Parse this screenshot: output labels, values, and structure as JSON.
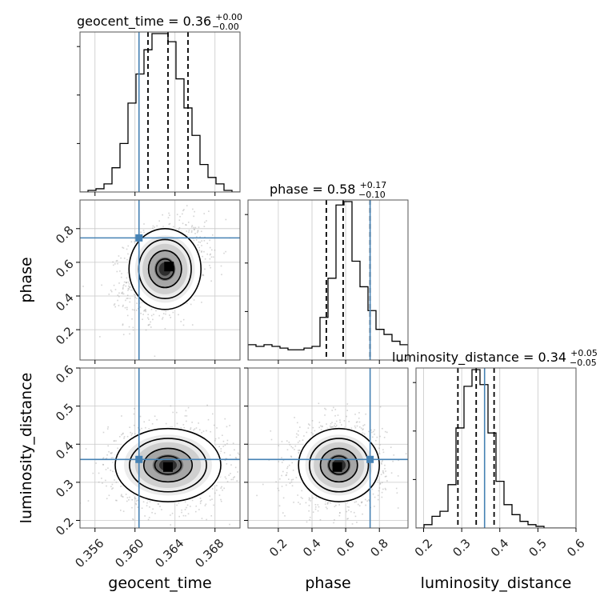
{
  "chart_data": {
    "type": "corner",
    "parameters": [
      "geocent_time",
      "phase",
      "luminosity_distance"
    ],
    "titles": [
      {
        "param": "geocent_time",
        "text": "geocent_time = 0.36",
        "upper": "+0.00",
        "lower": "−0.00"
      },
      {
        "param": "phase",
        "text": "phase = 0.58",
        "upper": "+0.17",
        "lower": "−0.10"
      },
      {
        "param": "luminosity_distance",
        "text": "luminosity_distance = 0.34",
        "upper": "+0.05",
        "lower": "−0.05"
      }
    ],
    "axis_labels": {
      "x": [
        "geocent_time",
        "phase",
        "luminosity_distance"
      ],
      "y": [
        "phase",
        "luminosity_distance"
      ]
    },
    "ranges": {
      "geocent_time": [
        0.3545,
        0.3705
      ],
      "phase": [
        0.02,
        0.97
      ],
      "luminosity_distance": [
        0.18,
        0.6
      ]
    },
    "ticks": {
      "geocent_time": {
        "values": [
          0.356,
          0.36,
          0.364,
          0.368
        ],
        "labels": [
          "0.356",
          "0.360",
          "0.364",
          "0.368"
        ]
      },
      "phase": {
        "values": [
          0.2,
          0.4,
          0.6,
          0.8
        ],
        "labels": [
          "0.2",
          "0.4",
          "0.6",
          "0.8"
        ]
      },
      "luminosity_distance": {
        "values": [
          0.2,
          0.3,
          0.4,
          0.5,
          0.6
        ],
        "labels": [
          "0.2",
          "0.3",
          "0.4",
          "0.5",
          "0.6"
        ]
      }
    },
    "ld_y_ticks": {
      "values": [
        0.2,
        0.3,
        0.4,
        0.5,
        0.6
      ],
      "labels": [
        "0.2",
        "0.3",
        "0.4",
        "0.5",
        "0.6"
      ]
    },
    "truths": {
      "geocent_time": 0.3604,
      "phase": 0.745,
      "luminosity_distance": 0.36
    },
    "quantiles": {
      "geocent_time": [
        0.3613,
        0.3633,
        0.3653
      ],
      "phase": [
        0.485,
        0.585,
        0.745
      ],
      "luminosity_distance": [
        0.29,
        0.338,
        0.385
      ]
    },
    "histograms": {
      "geocent_time": {
        "edges_start": 0.3545,
        "bin_width": 0.0008,
        "counts": [
          0,
          1,
          2,
          5,
          15,
          30,
          55,
          73,
          88,
          98,
          98,
          93,
          70,
          52,
          35,
          17,
          9,
          5,
          1,
          0
        ]
      },
      "phase": {
        "edges_start": 0.02,
        "bin_width": 0.0475,
        "counts": [
          9,
          8,
          9,
          8,
          7,
          6,
          6,
          7,
          8,
          25,
          48,
          91,
          93,
          58,
          43,
          29,
          18,
          15,
          11,
          9
        ]
      },
      "luminosity_distance": {
        "edges_start": 0.18,
        "bin_width": 0.021,
        "counts": [
          0,
          2,
          7,
          10,
          26,
          60,
          85,
          95,
          86,
          57,
          28,
          14,
          8,
          4,
          2,
          1,
          0,
          0,
          0,
          0
        ]
      }
    },
    "densities_2d": [
      {
        "x": "geocent_time",
        "y": "phase",
        "mean": [
          0.363,
          0.56
        ],
        "sd": [
          0.0015,
          0.1
        ],
        "corr": 0.3,
        "peak": [
          0.3634,
          0.575
        ]
      },
      {
        "x": "geocent_time",
        "y": "luminosity_distance",
        "mean": [
          0.3633,
          0.345
        ],
        "sd": [
          0.0022,
          0.04
        ],
        "corr": 0.0,
        "peak": [
          0.3633,
          0.34
        ]
      },
      {
        "x": "phase",
        "y": "luminosity_distance",
        "mean": [
          0.56,
          0.345
        ],
        "sd": [
          0.1,
          0.04
        ],
        "corr": 0.0,
        "peak": [
          0.55,
          0.34
        ]
      }
    ],
    "grid": true,
    "colors": {
      "truth": "#4682b4",
      "hist": "#000000",
      "quantile": "#000000",
      "grid": "#c8c8c8",
      "scatter": "#a0a0a0",
      "frame": "#000000"
    }
  }
}
